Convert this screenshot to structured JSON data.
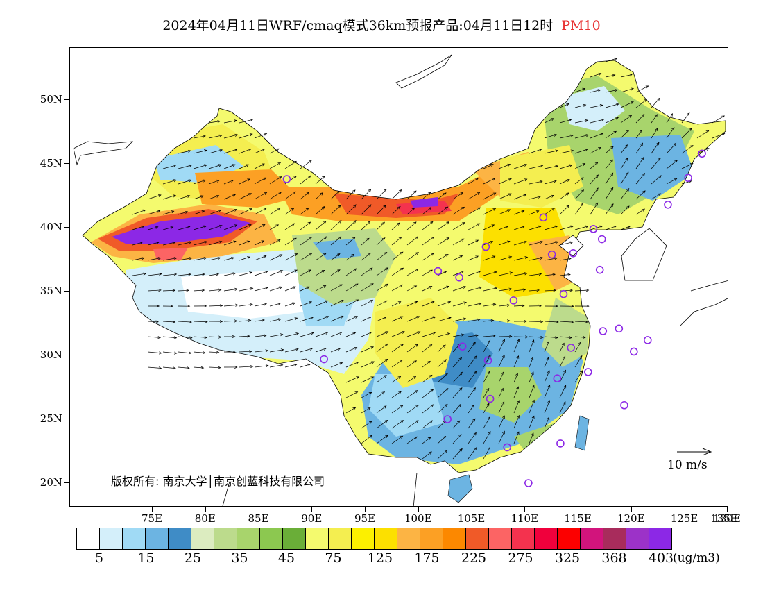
{
  "title": {
    "main": "2024年04月11日WRF/cmaq模式36km预报产品:04月11日12时",
    "pollutant": "PM10"
  },
  "axes": {
    "lat_labels": [
      "50N",
      "45N",
      "40N",
      "35N",
      "30N",
      "25N",
      "20N"
    ],
    "lat_values": [
      50,
      45,
      40,
      35,
      30,
      25,
      20
    ],
    "lon_labels": [
      "75E",
      "80E",
      "85E",
      "90E",
      "95E",
      "100E",
      "105E",
      "110E",
      "115E",
      "120E",
      "125E",
      "130E",
      "135E"
    ],
    "lon_values": [
      75,
      80,
      85,
      90,
      95,
      100,
      105,
      110,
      115,
      120,
      125,
      130,
      135
    ],
    "lon_range": [
      73,
      135
    ],
    "lat_range": [
      18,
      54
    ]
  },
  "colorbar": {
    "colors": [
      "#ffffff",
      "#d4effa",
      "#a0daf5",
      "#6cb4e2",
      "#3f8cc6",
      "#dcecc0",
      "#bcdb8c",
      "#a8d46c",
      "#8cc850",
      "#6aae38",
      "#f4fa6e",
      "#f4ee50",
      "#fcf000",
      "#fce000",
      "#fcb444",
      "#fca024",
      "#fc8800",
      "#f05a28",
      "#fc6464",
      "#f4324e",
      "#f0003c",
      "#fc0000",
      "#d2147c",
      "#a82c5c",
      "#9c32c8",
      "#8c28e6"
    ],
    "labels": [
      "5",
      "15",
      "25",
      "35",
      "45",
      "75",
      "125",
      "175",
      "225",
      "275",
      "325",
      "368",
      "403"
    ],
    "unit": "(ug/m3)"
  },
  "copyright": "版权所有: 南京大学│南京创蓝科技有限公司",
  "wind_reference": {
    "label": "10 m/s",
    "speed": 10
  },
  "stations": [
    {
      "lon": 87.6,
      "lat": 43.8
    },
    {
      "lon": 91.1,
      "lat": 29.7
    },
    {
      "lon": 101.8,
      "lat": 36.6
    },
    {
      "lon": 103.8,
      "lat": 36.1
    },
    {
      "lon": 106.3,
      "lat": 38.5
    },
    {
      "lon": 111.7,
      "lat": 40.8
    },
    {
      "lon": 116.4,
      "lat": 39.9
    },
    {
      "lon": 117.2,
      "lat": 39.1
    },
    {
      "lon": 114.5,
      "lat": 38.0
    },
    {
      "lon": 112.5,
      "lat": 37.9
    },
    {
      "lon": 117.0,
      "lat": 36.7
    },
    {
      "lon": 113.6,
      "lat": 34.8
    },
    {
      "lon": 108.9,
      "lat": 34.3
    },
    {
      "lon": 104.1,
      "lat": 30.7
    },
    {
      "lon": 106.5,
      "lat": 29.6
    },
    {
      "lon": 114.3,
      "lat": 30.6
    },
    {
      "lon": 117.3,
      "lat": 31.9
    },
    {
      "lon": 118.8,
      "lat": 32.1
    },
    {
      "lon": 121.5,
      "lat": 31.2
    },
    {
      "lon": 120.2,
      "lat": 30.3
    },
    {
      "lon": 115.9,
      "lat": 28.7
    },
    {
      "lon": 113.0,
      "lat": 28.2
    },
    {
      "lon": 106.7,
      "lat": 26.6
    },
    {
      "lon": 102.7,
      "lat": 25.0
    },
    {
      "lon": 108.3,
      "lat": 22.8
    },
    {
      "lon": 113.3,
      "lat": 23.1
    },
    {
      "lon": 119.3,
      "lat": 26.1
    },
    {
      "lon": 110.3,
      "lat": 20.0
    },
    {
      "lon": 123.4,
      "lat": 41.8
    },
    {
      "lon": 125.3,
      "lat": 43.9
    },
    {
      "lon": 126.6,
      "lat": 45.8
    }
  ]
}
